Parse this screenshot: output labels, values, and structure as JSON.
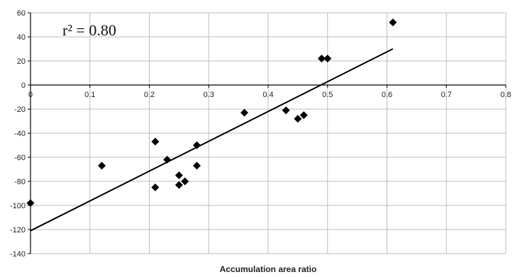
{
  "chart_data": {
    "type": "scatter",
    "title": "",
    "xlabel": "Accumulation area ratio",
    "ylabel": "",
    "xlim": [
      0,
      0.8
    ],
    "ylim": [
      -140,
      60
    ],
    "x_ticks": [
      0,
      0.1,
      0.2,
      0.3,
      0.4,
      0.5,
      0.6,
      0.7,
      0.8
    ],
    "y_ticks": [
      60,
      40,
      20,
      0,
      -20,
      -40,
      -60,
      -80,
      -100,
      -120,
      -140
    ],
    "grid": true,
    "legend": "none",
    "annotation": "r² = 0.80",
    "marker": "diamond",
    "series": [
      {
        "points": [
          {
            "x": 0.0,
            "y": -98
          },
          {
            "x": 0.12,
            "y": -67
          },
          {
            "x": 0.21,
            "y": -47
          },
          {
            "x": 0.21,
            "y": -85
          },
          {
            "x": 0.23,
            "y": -62
          },
          {
            "x": 0.25,
            "y": -75
          },
          {
            "x": 0.25,
            "y": -83
          },
          {
            "x": 0.26,
            "y": -80
          },
          {
            "x": 0.28,
            "y": -50
          },
          {
            "x": 0.28,
            "y": -67
          },
          {
            "x": 0.36,
            "y": -23
          },
          {
            "x": 0.43,
            "y": -21
          },
          {
            "x": 0.45,
            "y": -28
          },
          {
            "x": 0.46,
            "y": -25
          },
          {
            "x": 0.49,
            "y": 22
          },
          {
            "x": 0.5,
            "y": 22
          },
          {
            "x": 0.61,
            "y": 52
          }
        ]
      }
    ],
    "trendline": {
      "x": [
        0.0,
        0.61
      ],
      "y": [
        -121,
        30
      ]
    }
  },
  "colors": {
    "marker": "#000000",
    "line": "#000000",
    "grid": "#bdbdbd",
    "axis": "#000000"
  }
}
